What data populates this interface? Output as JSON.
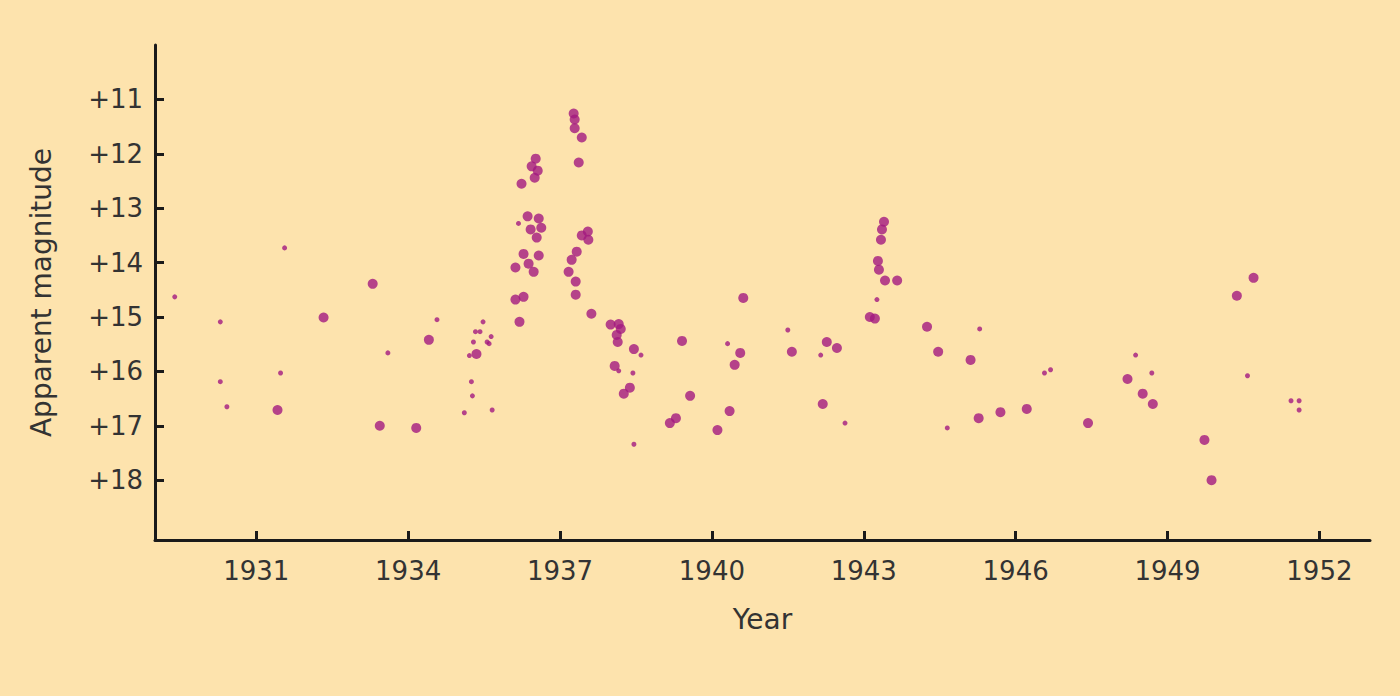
{
  "chart_data": {
    "type": "scatter",
    "xlabel": "Year",
    "ylabel": "Apparent magnitude",
    "xlim": [
      1929,
      1953
    ],
    "xticks": [
      1931,
      1934,
      1937,
      1940,
      1943,
      1946,
      1949,
      1952
    ],
    "ylim": [
      19.1,
      10
    ],
    "yticks": [
      {
        "value": 11,
        "label": "+11"
      },
      {
        "value": 12,
        "label": "+12"
      },
      {
        "value": 13,
        "label": "+13"
      },
      {
        "value": 14,
        "label": "+14"
      },
      {
        "value": 15,
        "label": "+15"
      },
      {
        "value": 16,
        "label": "+16"
      },
      {
        "value": 17,
        "label": "+17"
      },
      {
        "value": 18,
        "label": "+18"
      }
    ],
    "grid": false,
    "color": "#a3197f",
    "series": [
      {
        "marker": "large",
        "x": [
          1931.42,
          1932.33,
          1933.3,
          1933.44,
          1934.16,
          1934.41,
          1935.35,
          1936.12,
          1936.12,
          1936.2,
          1936.24,
          1936.28,
          1936.28,
          1936.36,
          1936.38,
          1936.42,
          1936.44,
          1936.48,
          1936.5,
          1936.52,
          1936.54,
          1936.56,
          1936.58,
          1936.58,
          1936.63,
          1937.17,
          1937.23,
          1937.27,
          1937.29,
          1937.29,
          1937.31,
          1937.31,
          1937.33,
          1937.37,
          1937.43,
          1937.43,
          1937.55,
          1937.56,
          1937.62,
          1938.0,
          1938.08,
          1938.12,
          1938.14,
          1938.16,
          1938.2,
          1938.26,
          1938.38,
          1938.46,
          1939.17,
          1939.29,
          1939.41,
          1939.57,
          1940.11,
          1940.35,
          1940.45,
          1940.56,
          1940.62,
          1941.58,
          1942.19,
          1942.27,
          1942.47,
          1943.12,
          1943.22,
          1943.28,
          1943.3,
          1943.34,
          1943.36,
          1943.4,
          1943.42,
          1943.66,
          1944.25,
          1944.47,
          1945.11,
          1945.27,
          1945.7,
          1946.22,
          1947.43,
          1948.21,
          1948.51,
          1948.71,
          1949.73,
          1949.87,
          1950.37,
          1950.7
        ],
        "values": [
          16.71,
          15.01,
          14.39,
          17.0,
          17.04,
          15.42,
          15.68,
          14.68,
          14.09,
          15.09,
          12.55,
          14.63,
          13.84,
          13.15,
          14.02,
          13.39,
          12.23,
          14.17,
          12.44,
          12.09,
          13.54,
          12.31,
          13.19,
          13.87,
          13.36,
          14.17,
          13.95,
          11.26,
          11.37,
          11.53,
          14.59,
          14.35,
          13.8,
          12.16,
          11.7,
          13.5,
          13.43,
          13.58,
          14.94,
          15.14,
          15.9,
          15.33,
          15.46,
          15.13,
          15.22,
          16.41,
          16.3,
          15.59,
          16.95,
          16.86,
          15.44,
          16.45,
          17.08,
          16.73,
          15.88,
          15.66,
          14.65,
          15.64,
          16.6,
          15.46,
          15.57,
          15.0,
          15.03,
          13.97,
          14.13,
          13.58,
          13.39,
          13.25,
          14.33,
          14.33,
          15.18,
          15.64,
          15.79,
          16.86,
          16.75,
          16.69,
          16.95,
          16.14,
          16.41,
          16.6,
          17.26,
          18.0,
          14.61,
          14.28
        ]
      },
      {
        "marker": "small",
        "x": [
          1929.39,
          1930.29,
          1930.29,
          1930.42,
          1931.48,
          1931.56,
          1933.6,
          1934.57,
          1935.11,
          1935.21,
          1935.25,
          1935.27,
          1935.29,
          1935.33,
          1935.42,
          1935.48,
          1935.56,
          1935.6,
          1935.64,
          1935.66,
          1936.18,
          1938.16,
          1938.44,
          1938.46,
          1938.6,
          1940.31,
          1941.5,
          1942.15,
          1942.63,
          1943.26,
          1944.65,
          1945.29,
          1946.57,
          1946.69,
          1948.37,
          1948.69,
          1950.58,
          1951.44,
          1951.6,
          1951.6
        ],
        "values": [
          14.63,
          15.09,
          16.19,
          16.65,
          16.03,
          13.73,
          15.66,
          15.05,
          16.76,
          15.71,
          16.19,
          16.45,
          15.46,
          15.27,
          15.27,
          15.09,
          15.46,
          15.49,
          15.36,
          16.71,
          13.28,
          15.99,
          16.03,
          17.34,
          15.7,
          15.49,
          15.24,
          15.7,
          16.95,
          14.68,
          17.04,
          15.22,
          16.03,
          15.97,
          15.7,
          16.03,
          16.08,
          16.54,
          16.54,
          16.71
        ]
      }
    ]
  }
}
